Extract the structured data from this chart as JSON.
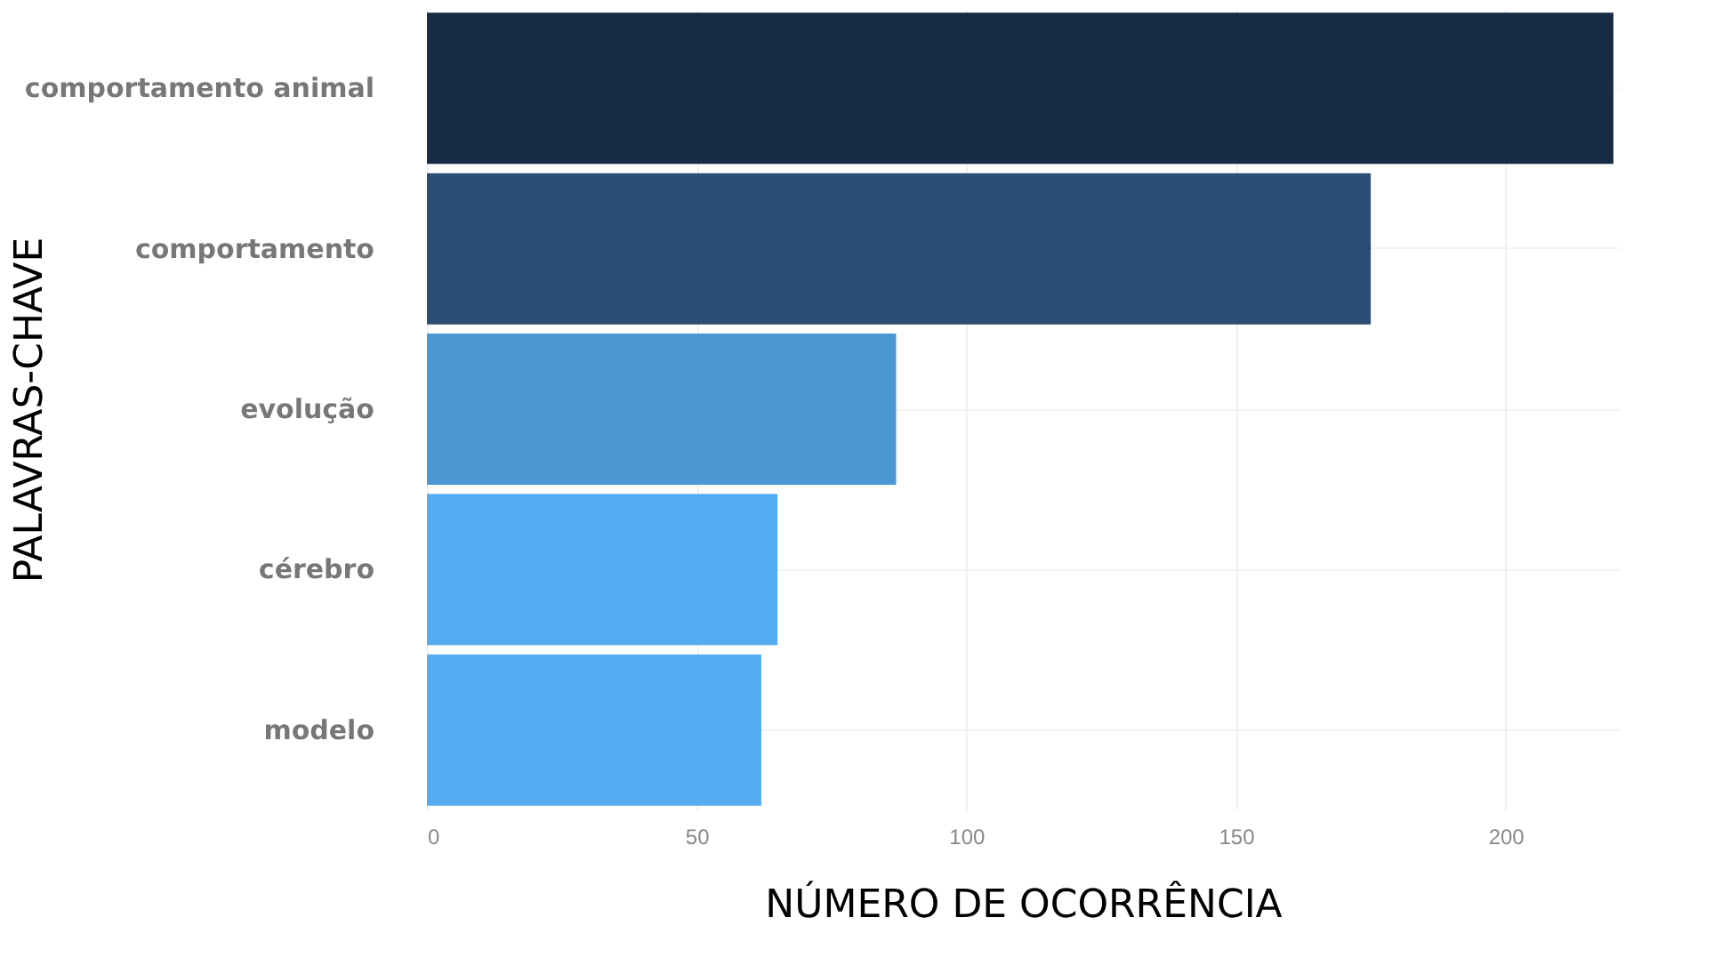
{
  "chart_data": {
    "type": "bar",
    "orientation": "horizontal",
    "xlabel": "NÚMERO DE OCORRÊNCIA",
    "ylabel": "PALAVRAS-CHAVE",
    "categories": [
      "comportamento animal",
      "comportamento",
      "evolução",
      "cérebro",
      "modelo"
    ],
    "values": [
      220,
      175,
      87,
      65,
      62
    ],
    "colors": [
      "#172b45",
      "#2a4e75",
      "#4a97d4",
      "#56acf0",
      "#56acf0"
    ],
    "xlim": [
      0,
      221
    ],
    "xticks": [
      0,
      50,
      100,
      150,
      200
    ],
    "grid": true
  }
}
